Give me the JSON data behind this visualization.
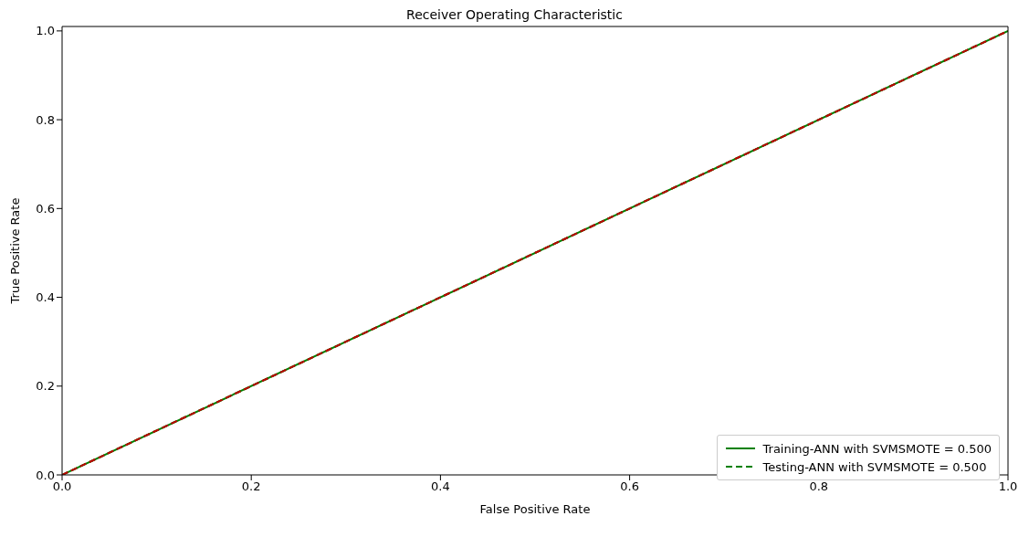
{
  "chart_data": {
    "type": "line",
    "title": "Receiver Operating Characteristic",
    "xlabel": "False Positive Rate",
    "ylabel": "True Positive Rate",
    "x": [
      0,
      1
    ],
    "series": [
      {
        "name": "Training-ANN with SVMSMOTE = 0.500",
        "color": "#008000",
        "values": [
          0,
          1
        ],
        "line_style": "solid"
      },
      {
        "name": "Testing-ANN with SVMSMOTE = 0.500",
        "color": "#008000",
        "values": [
          0,
          1
        ],
        "line_style": "dashed"
      },
      {
        "color": "#c00000",
        "values": [
          0,
          1
        ],
        "line_style": "dashed"
      }
    ],
    "xlim": [
      0,
      1
    ],
    "ylim": [
      0,
      1.01
    ],
    "xticks": [
      {
        "value": 0,
        "label": "0.0"
      },
      0.2,
      0.4,
      0.6,
      0.8,
      {
        "value": 1,
        "label": "1.0"
      }
    ],
    "yticks": [
      {
        "value": 0,
        "label": "0.0"
      },
      0.2,
      0.4,
      0.6,
      0.8,
      {
        "value": 1,
        "label": "1.0"
      }
    ],
    "grid": false,
    "legend": "bottom right",
    "marker": "none"
  }
}
